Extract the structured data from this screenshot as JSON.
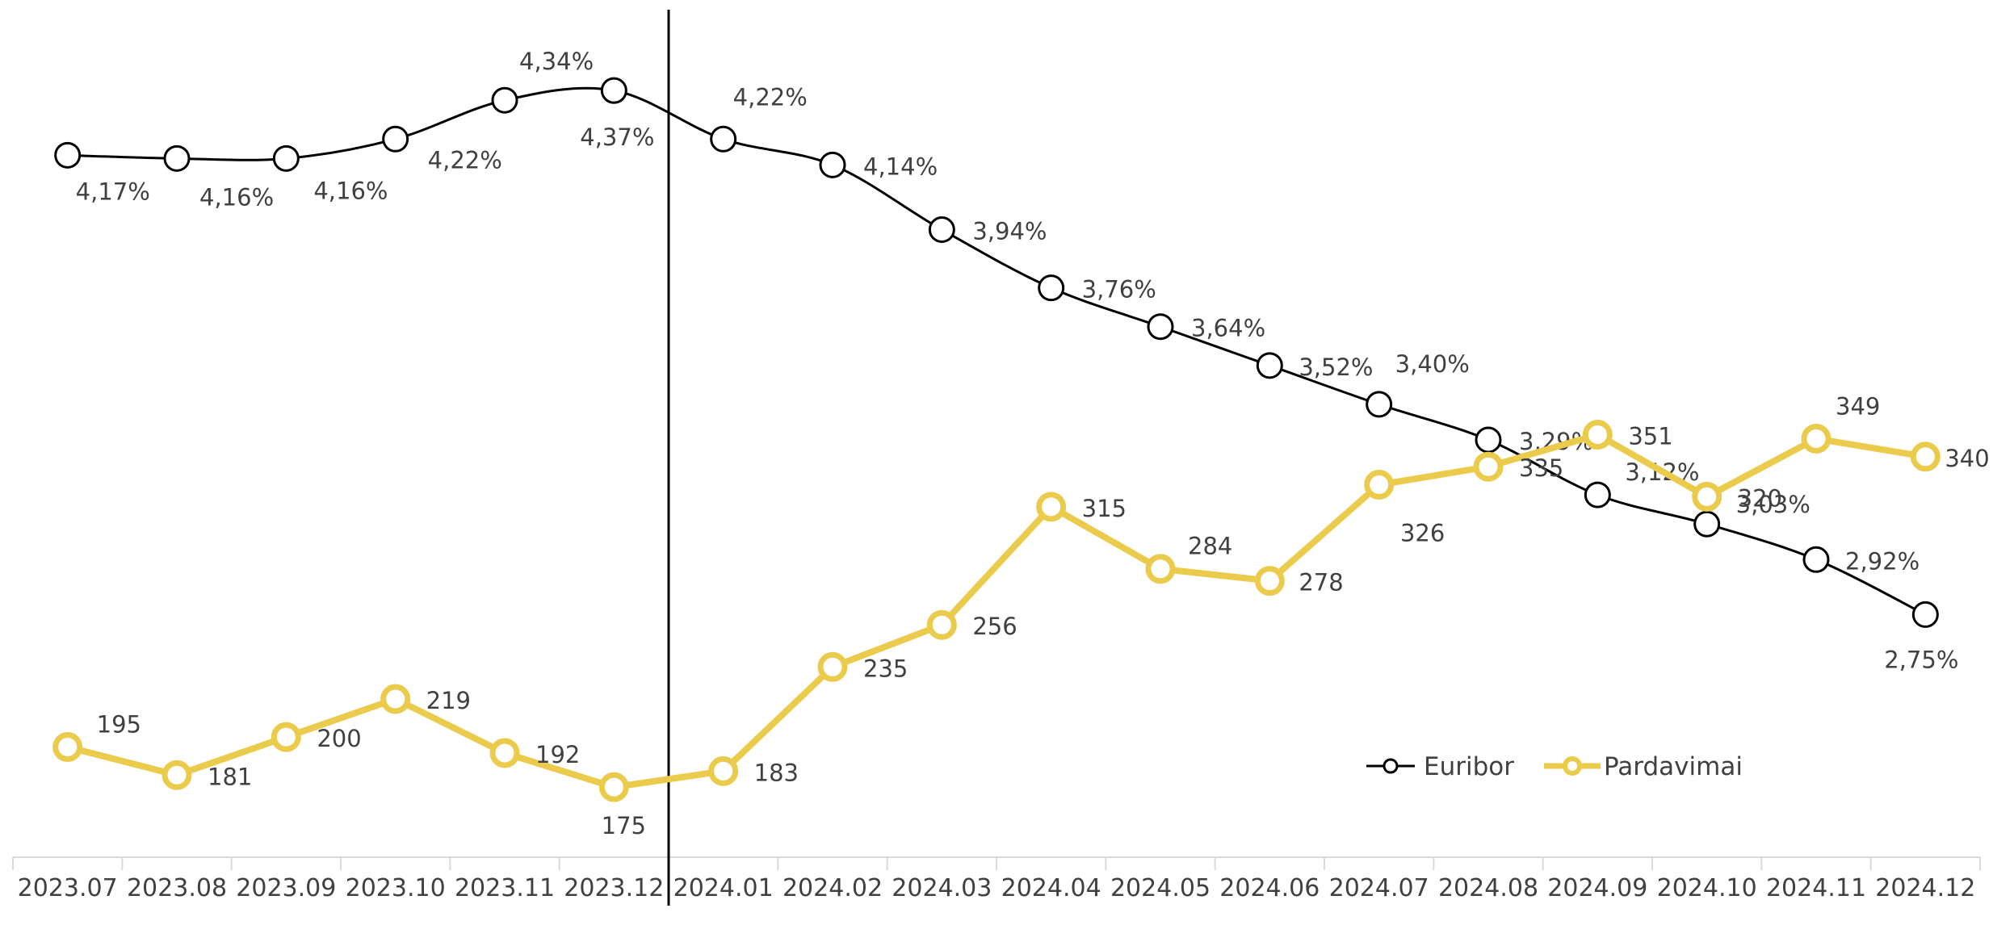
{
  "chart_data": {
    "type": "line",
    "categories": [
      "2023.07",
      "2023.08",
      "2023.09",
      "2023.10",
      "2023.11",
      "2023.12",
      "2024.01",
      "2024.02",
      "2024.03",
      "2024.04",
      "2024.05",
      "2024.06",
      "2024.07",
      "2024.08",
      "2024.09",
      "2024.10",
      "2024.11",
      "2024.12"
    ],
    "series": [
      {
        "name": "Euribor",
        "axis": "left",
        "values": [
          4.17,
          4.16,
          4.16,
          4.22,
          4.34,
          4.37,
          4.22,
          4.14,
          3.94,
          3.76,
          3.64,
          3.52,
          3.4,
          3.29,
          3.12,
          3.03,
          2.92,
          2.75
        ],
        "labels": [
          "4,17%",
          "4,16%",
          "4,16%",
          "4,22%",
          "4,34%",
          "4,37%",
          "4,22%",
          "4,14%",
          "3,94%",
          "3,76%",
          "3,64%",
          "3,52%",
          "3,40%",
          "3,29%",
          "3,12%",
          "3,03%",
          "2,92%",
          "2,75%"
        ],
        "color": "#000000"
      },
      {
        "name": "Pardavimai",
        "axis": "right",
        "values": [
          195,
          181,
          200,
          219,
          192,
          175,
          183,
          235,
          256,
          315,
          284,
          278,
          326,
          335,
          351,
          320,
          349,
          340
        ],
        "labels": [
          "195",
          "181",
          "200",
          "219",
          "192",
          "175",
          "183",
          "235",
          "256",
          "315",
          "284",
          "278",
          "326",
          "335",
          "351",
          "320",
          "349",
          "340"
        ],
        "color": "#EBCB4C"
      }
    ],
    "y_left_range": [
      2.0,
      4.6
    ],
    "y_right_range": [
      140,
      560
    ],
    "divider_after_category": "2023.12",
    "grid": false,
    "legend_position": "bottom-right",
    "title": "",
    "xlabel": "",
    "ylabel": ""
  }
}
